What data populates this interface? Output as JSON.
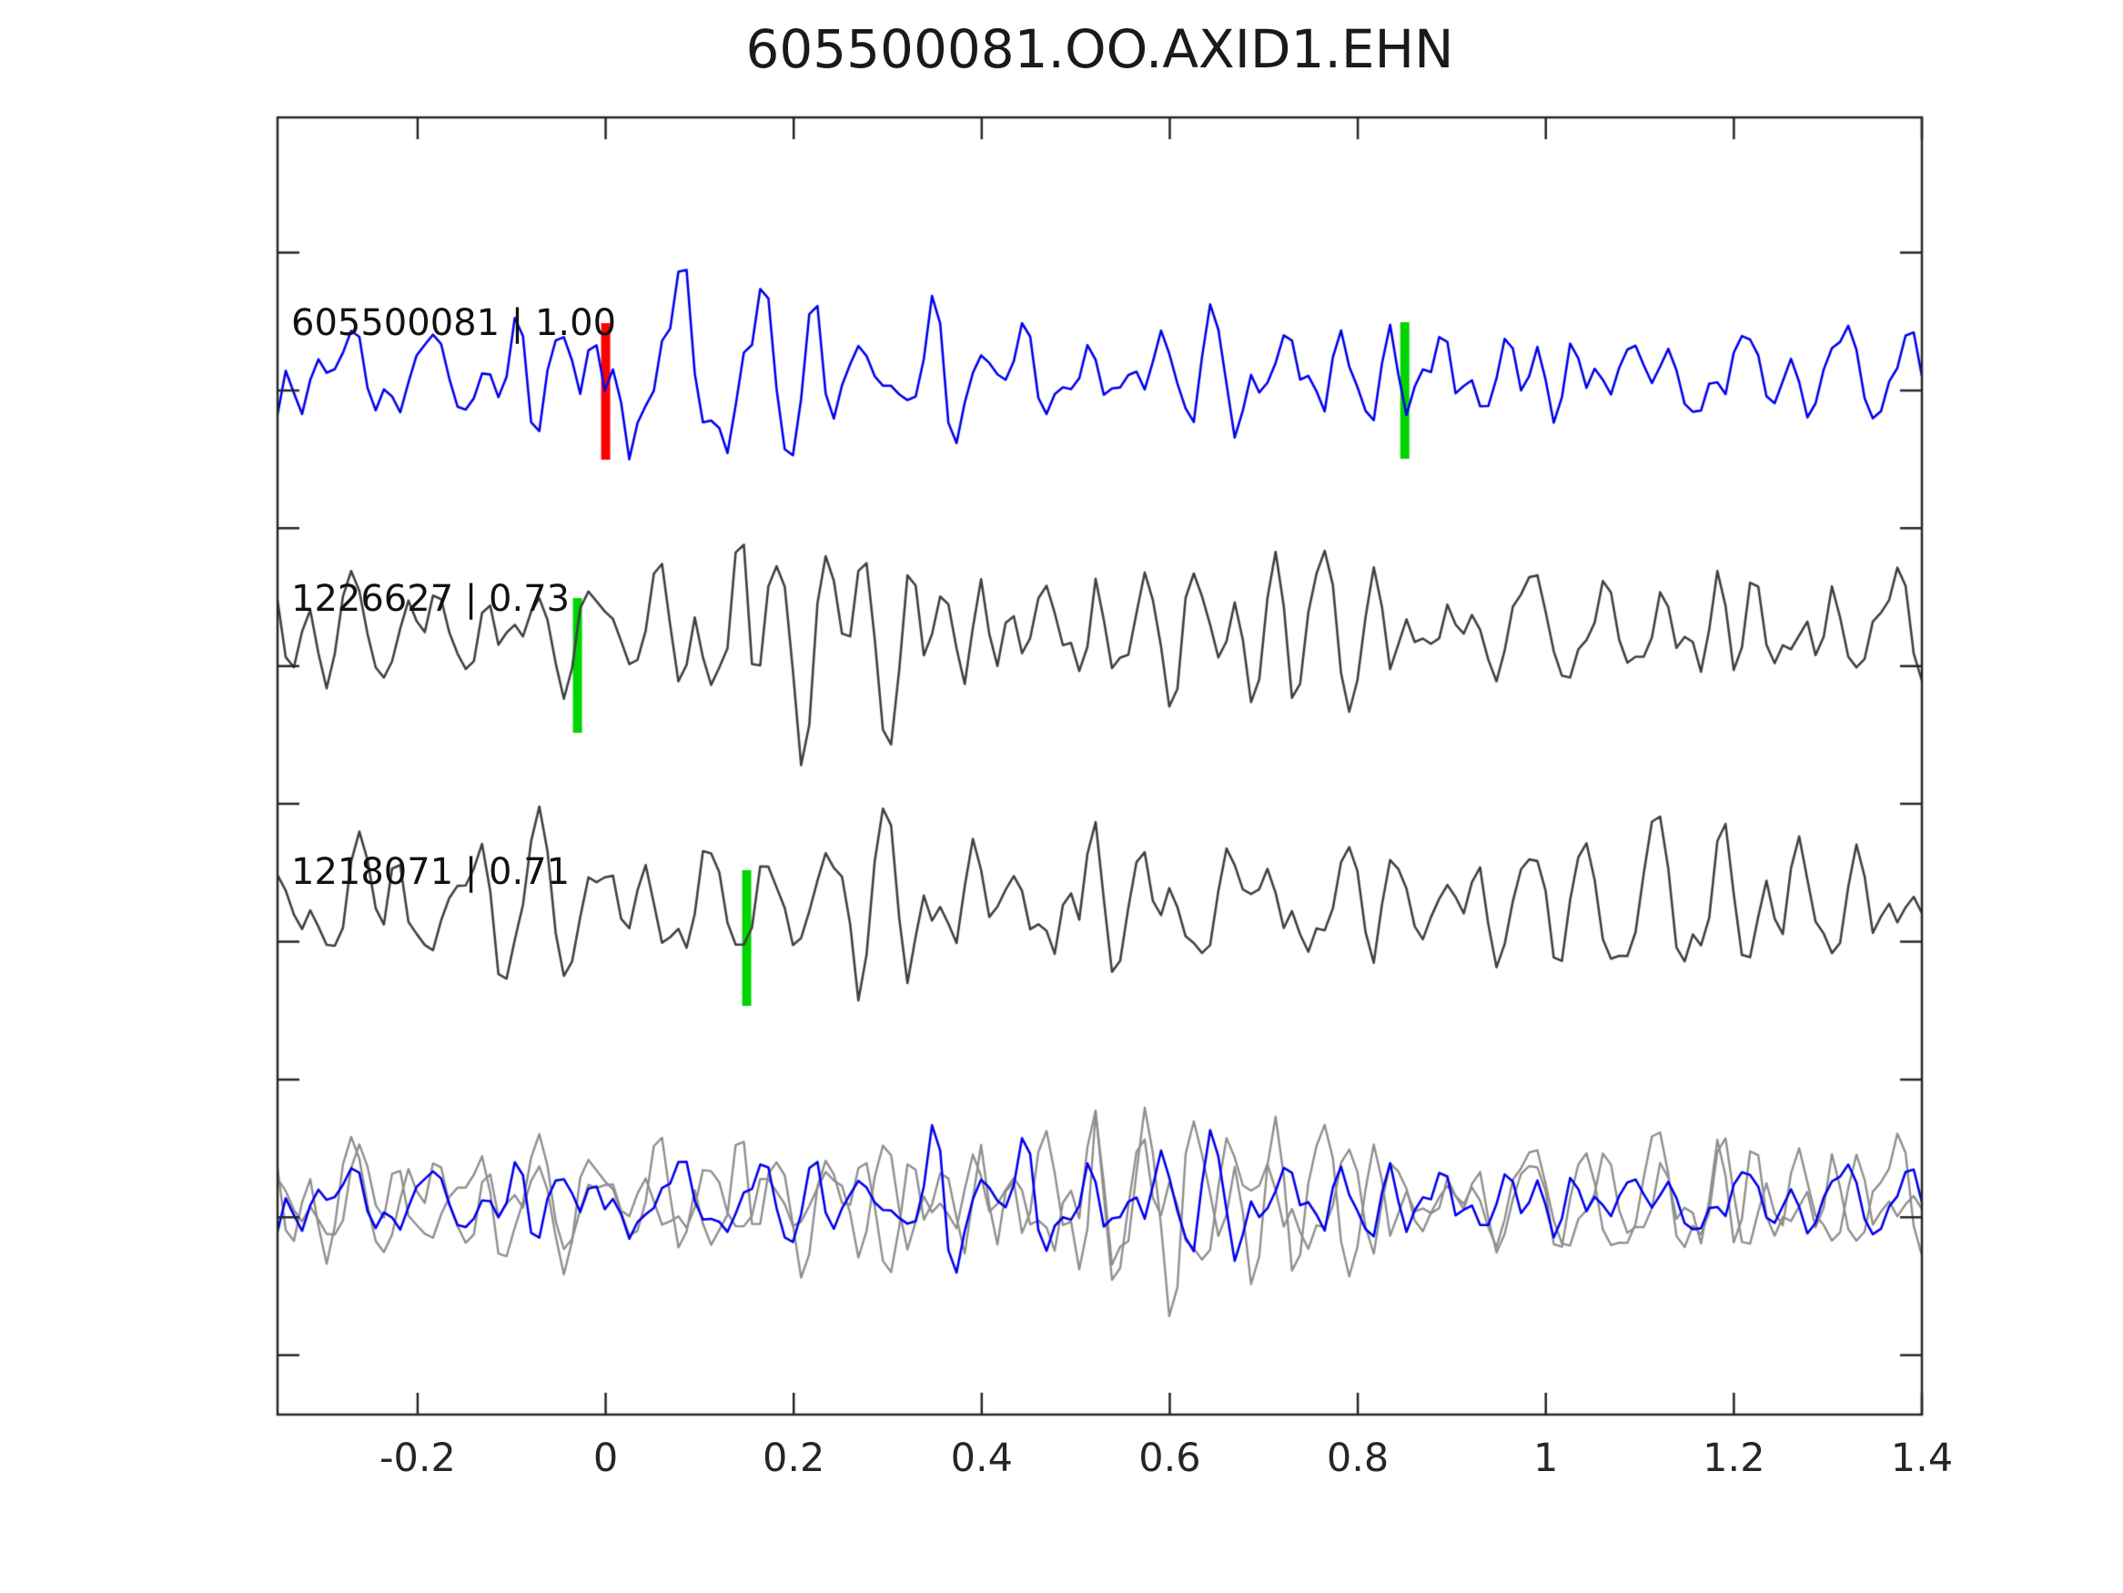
{
  "chart_data": {
    "type": "line",
    "title": "605500081.OO.AXID1.EHN",
    "description": "Template matching waveform comparison: template trace, two detected event traces with pick markers, and an overlay of template on detections.",
    "x_axis": {
      "label": "",
      "min": -0.349,
      "max": 1.4,
      "ticks": [
        -0.2,
        0,
        0.2,
        0.4,
        0.6,
        0.8,
        1,
        1.2,
        1.4
      ],
      "tick_labels": [
        "-0.2",
        "0",
        "0.2",
        "0.4",
        "0.6",
        "0.8",
        "1",
        "1.2",
        "1.4"
      ]
    },
    "y_axis": {
      "label": "",
      "tick_labels_visible": false
    },
    "colors": {
      "template_blue": "#0000EE",
      "detection_gray": "#404040",
      "overlay_gray": "#8F8F8F",
      "pick_green": "#00D500",
      "template_time_red": "#FF0000",
      "axis": "#262626"
    },
    "series": [
      {
        "id": "605500081",
        "label": "605500081 | 1.00",
        "correlation": "1.00",
        "role": "template",
        "color": "#0000EE",
        "markers": [
          {
            "t": 0.0,
            "color": "#FF0000",
            "y1": 355,
            "y2": 505
          },
          {
            "t": 0.85,
            "color": "#00D500",
            "y1": 354,
            "y2": 504
          }
        ]
      },
      {
        "id": "1226627",
        "label": "1226627 | 0.73",
        "correlation": "0.73",
        "role": "detection",
        "color": "#404040",
        "markers": [
          {
            "t": -0.03,
            "color": "#00D500",
            "y1": 657,
            "y2": 805
          }
        ]
      },
      {
        "id": "1218071",
        "label": "1218071 | 0.71",
        "correlation": "0.71",
        "role": "detection",
        "color": "#404040",
        "markers": [
          {
            "t": 0.15,
            "color": "#00D500",
            "y1": 956,
            "y2": 1105
          }
        ]
      },
      {
        "id": "overlay",
        "label": "",
        "role": "overlay",
        "components": [
          "1226627",
          "1218071",
          "605500081"
        ],
        "markers": []
      }
    ],
    "render": {
      "points_per_trace": 202,
      "marker_width": 10,
      "tick_len": 24,
      "y_tick_start": 277.5,
      "y_tick_step": 151.4,
      "traces": [
        {
          "series": 0,
          "seed": 605500081,
          "baseline": 412,
          "amp": 85,
          "color": "#0000EE",
          "lw": 2.6,
          "bursts": [
            {
              "c": 0.1,
              "s": 0.09,
              "g": 1.0
            }
          ]
        },
        {
          "series": 1,
          "seed": 1226627,
          "baseline": 693,
          "amp": 74,
          "color": "#404040",
          "lw": 2.6,
          "bursts": [
            {
              "c": 0.27,
              "s": 0.1,
              "g": 1.25
            },
            {
              "c": 0.82,
              "s": 0.2,
              "g": 0.25
            }
          ]
        },
        {
          "series": 2,
          "seed": 1218071,
          "baseline": 993,
          "amp": 96,
          "color": "#404040",
          "lw": 2.6,
          "bursts": [
            {
              "c": 0.33,
              "s": 0.12,
              "g": 0.6
            },
            {
              "c": 0.04,
              "s": 0.09,
              "g": 0.3
            }
          ]
        },
        {
          "series": 3,
          "seed": 1226627,
          "baseline": 1320,
          "amp": 80,
          "color": "#8F8F8F",
          "lw": 2.4,
          "bursts": [
            {
              "c": 0.5,
              "s": 0.13,
              "g": 0.8
            }
          ]
        },
        {
          "series": 3,
          "seed": 1218071,
          "baseline": 1320,
          "amp": 76,
          "color": "#8F8F8F",
          "lw": 2.4,
          "bursts": [
            {
              "c": 0.54,
              "s": 0.15,
              "g": 0.65
            }
          ]
        },
        {
          "series": 3,
          "seed": 605500081,
          "baseline": 1320,
          "amp": 64,
          "color": "#0000EE",
          "lw": 2.6,
          "bursts": [
            {
              "c": 0.5,
              "s": 0.12,
              "g": 0.7
            }
          ]
        }
      ]
    }
  }
}
